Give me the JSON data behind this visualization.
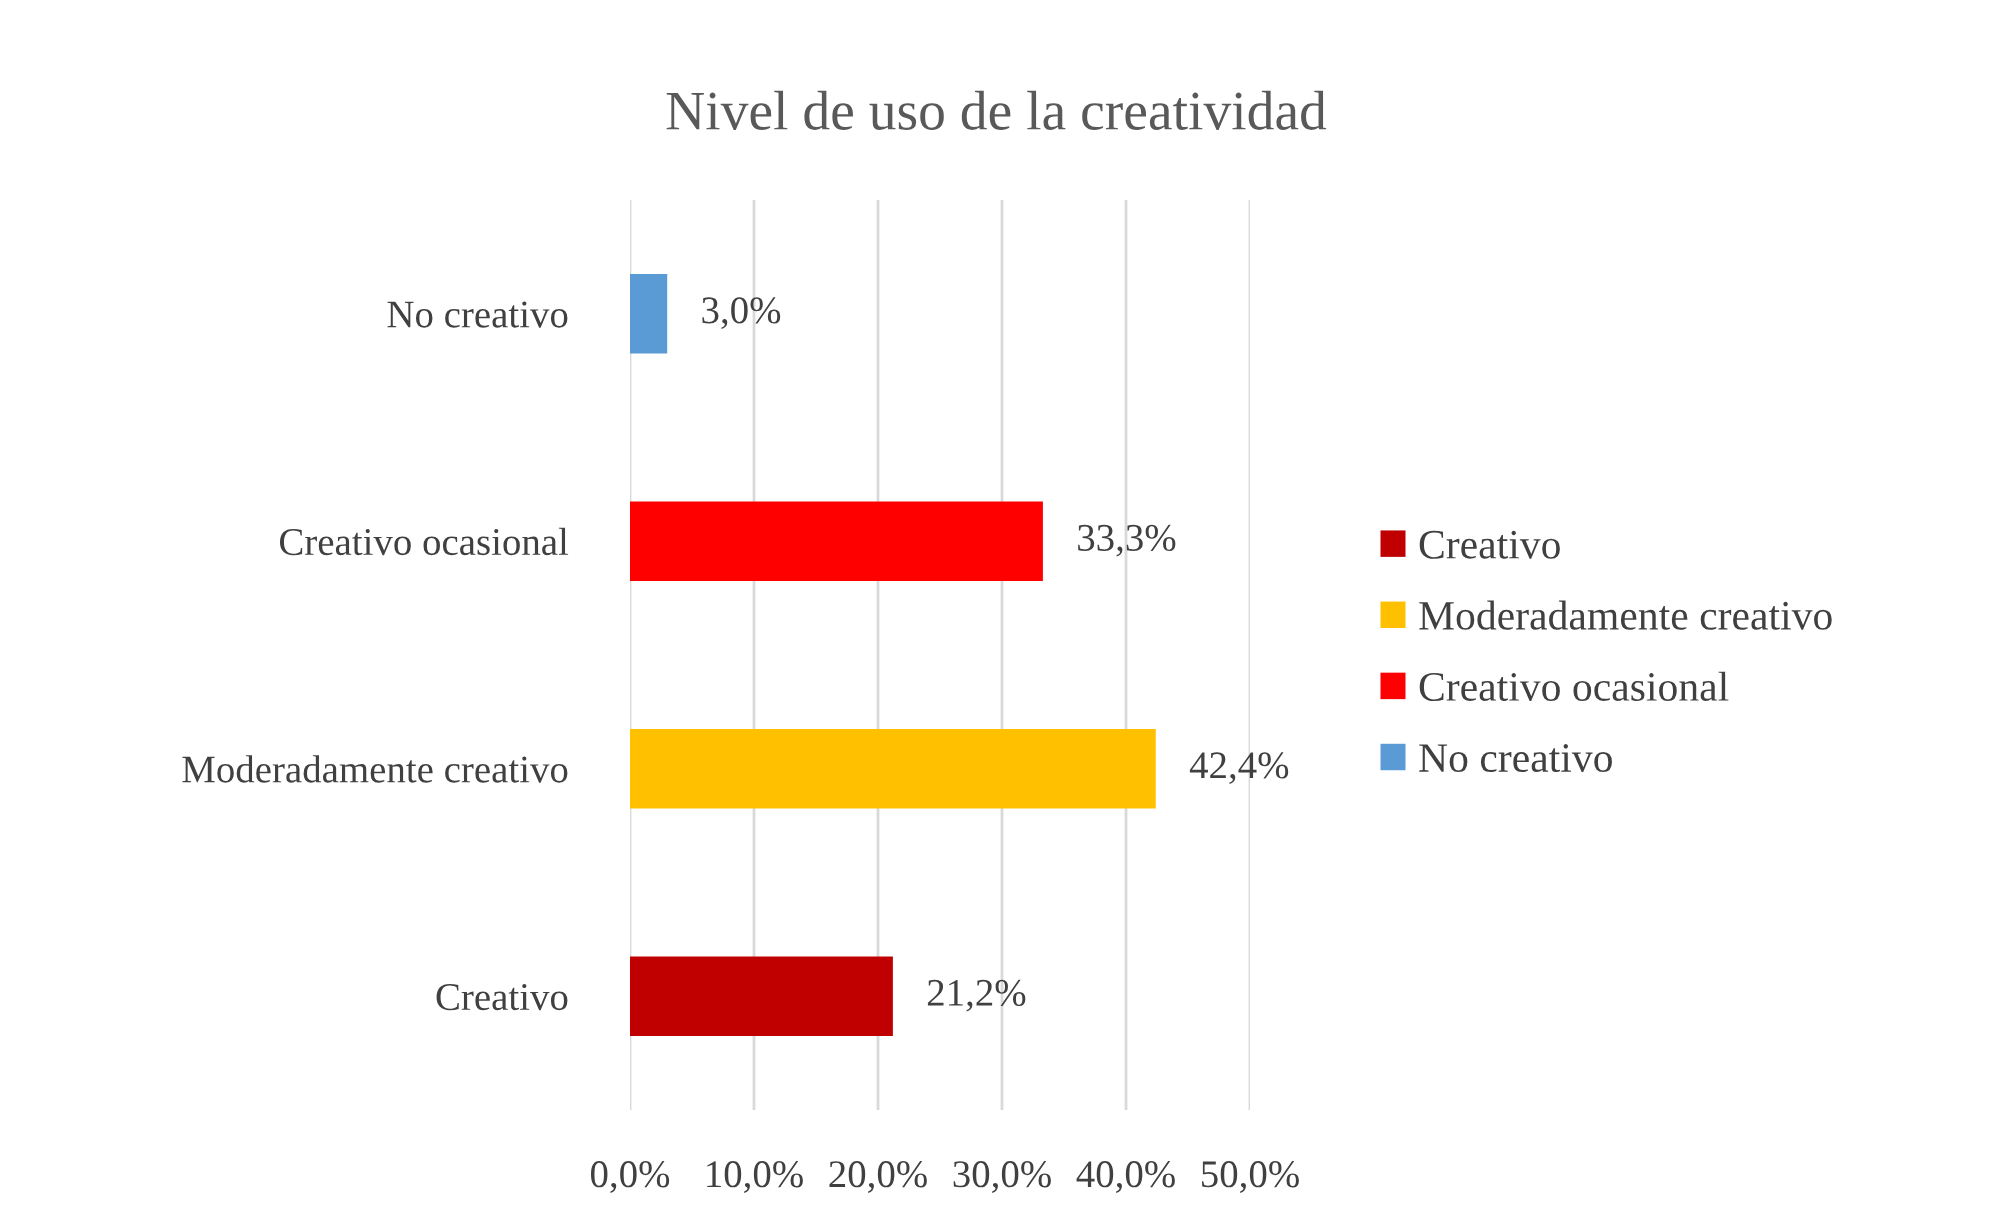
{
  "chart_data": {
    "type": "bar",
    "orientation": "horizontal",
    "title": "Nivel de uso de la creatividad",
    "categories": [
      "No creativo",
      "Creativo ocasional",
      "Moderadamente creativo",
      "Creativo"
    ],
    "series": [
      {
        "name": "Creativo",
        "color": "#c00000",
        "values": [
          null,
          null,
          null,
          21.2
        ],
        "value_labels": [
          null,
          null,
          null,
          "21,2%"
        ]
      },
      {
        "name": "Moderadamente creativo",
        "color": "#ffc000",
        "values": [
          null,
          null,
          42.4,
          null
        ],
        "value_labels": [
          null,
          null,
          "42,4%",
          null
        ]
      },
      {
        "name": "Creativo ocasional",
        "color": "#ff0000",
        "values": [
          null,
          33.3,
          null,
          null
        ],
        "value_labels": [
          null,
          "33,3%",
          null,
          null
        ]
      },
      {
        "name": "No creativo",
        "color": "#5b9bd5",
        "values": [
          3.0,
          null,
          null,
          null
        ],
        "value_labels": [
          "3,0%",
          null,
          null,
          null
        ]
      }
    ],
    "xlim": [
      0,
      50
    ],
    "xticks": [
      {
        "value": 0,
        "label": "0,0%"
      },
      {
        "value": 10,
        "label": "10,0%"
      },
      {
        "value": 20,
        "label": "20,0%"
      },
      {
        "value": 30,
        "label": "30,0%"
      },
      {
        "value": 40,
        "label": "40,0%"
      },
      {
        "value": 50,
        "label": "50,0%"
      }
    ],
    "grid": "x",
    "legend": "right"
  }
}
